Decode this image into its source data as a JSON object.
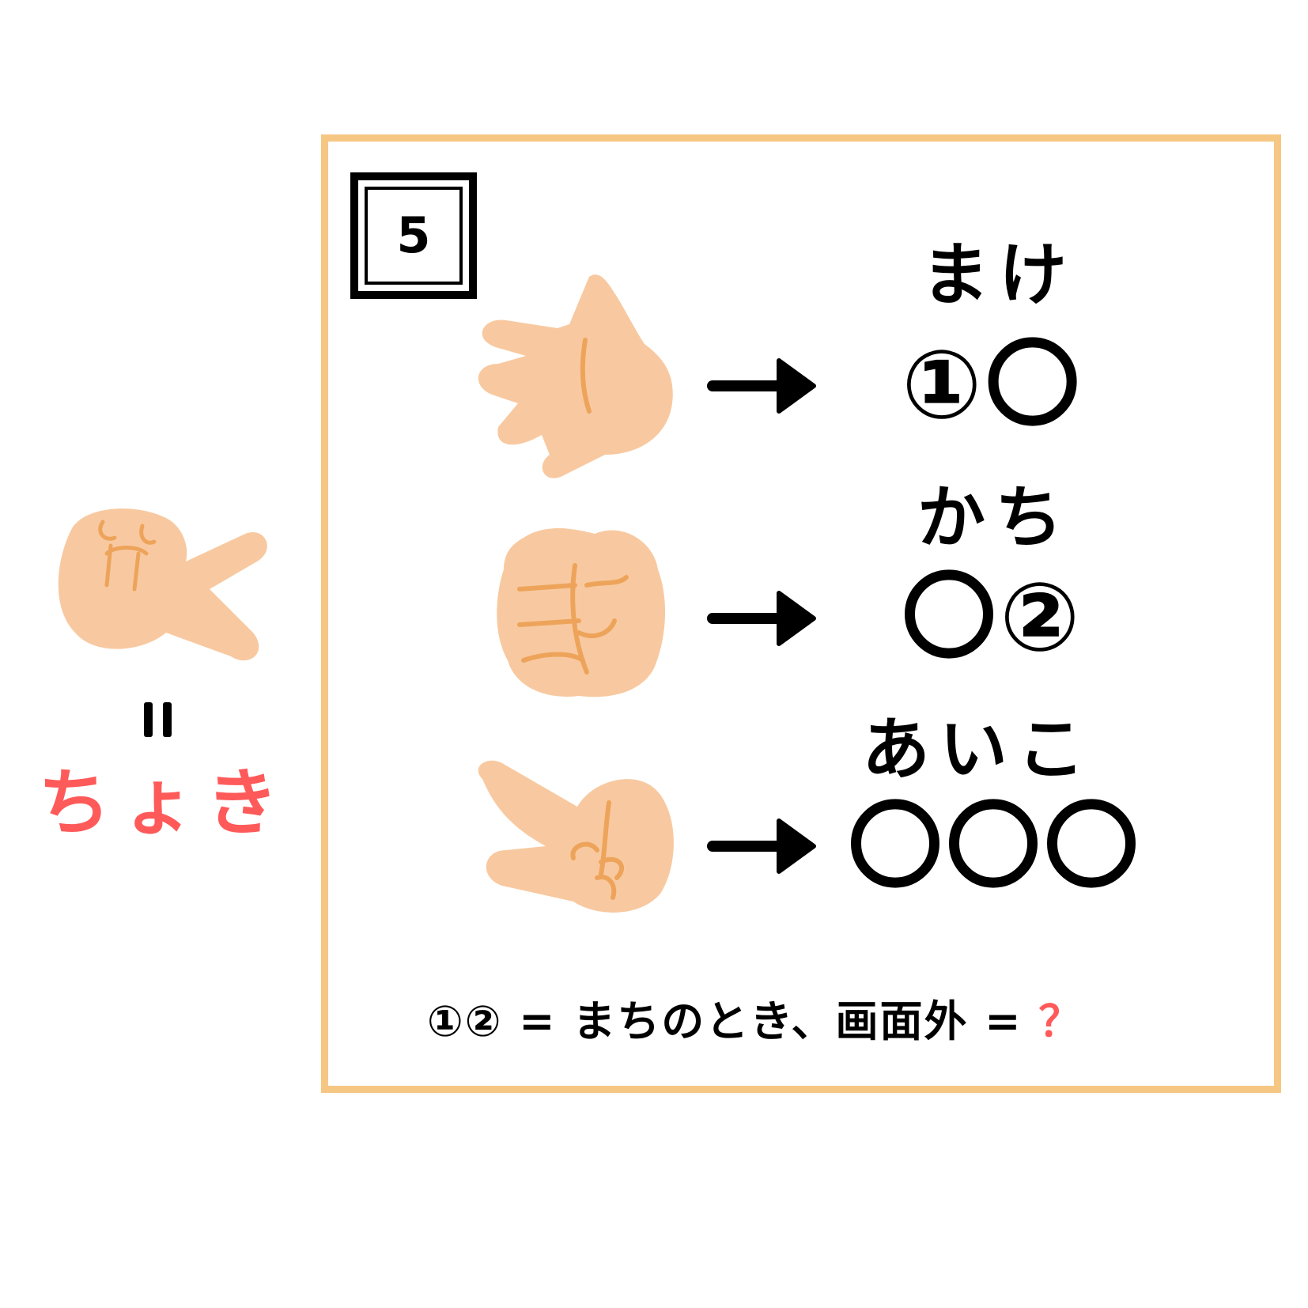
{
  "left_panel": {
    "equals_symbol": "=",
    "answer_word": "ちょき",
    "hand_icon": "scissors-hand-icon"
  },
  "puzzle": {
    "number": "5",
    "rows": [
      {
        "hand_icon": "paper-hand-icon",
        "label": "まけ",
        "circles": "①〇"
      },
      {
        "hand_icon": "rock-hand-icon",
        "label": "かち",
        "circles": "〇②"
      },
      {
        "hand_icon": "scissors-hand-icon",
        "label": "あいこ",
        "circles": "〇〇〇"
      }
    ],
    "bottom": {
      "text": "①② = まちのとき、画面外 = ",
      "question": "？"
    }
  },
  "colors": {
    "frame": "#f6c783",
    "skin": "#f8c9a0",
    "skin_line": "#eda45a",
    "accent_red": "#ff5a5a"
  }
}
